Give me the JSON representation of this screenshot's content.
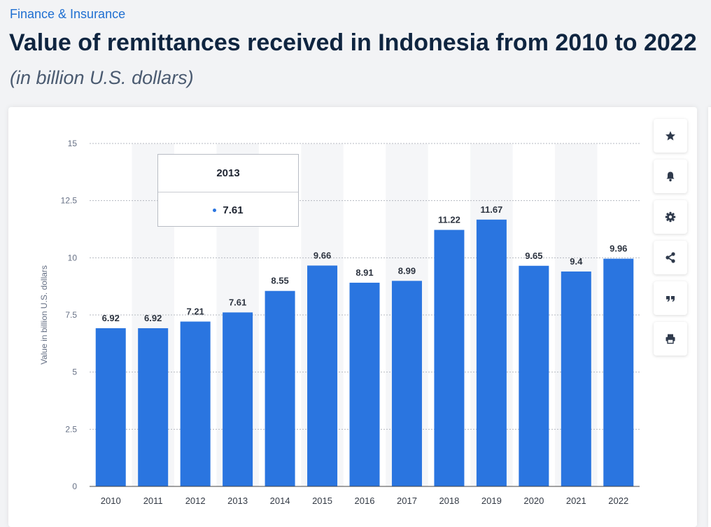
{
  "breadcrumb": "Finance & Insurance",
  "title": "Value of remittances received in Indonesia from 2010 to 2022",
  "subtitle": "(in billion U.S. dollars)",
  "colors": {
    "bar": "#2a75e0",
    "accent": "#1f6fd1",
    "title": "#0f2540",
    "stripe": "#f5f6f8"
  },
  "tooltip": {
    "category": "2013",
    "value": "7.61"
  },
  "toolbar": [
    {
      "name": "favorite-button",
      "icon": "star-icon"
    },
    {
      "name": "notification-button",
      "icon": "bell-icon"
    },
    {
      "name": "settings-button",
      "icon": "gear-icon"
    },
    {
      "name": "share-button",
      "icon": "share-icon"
    },
    {
      "name": "cite-button",
      "icon": "quote-icon"
    },
    {
      "name": "print-button",
      "icon": "printer-icon"
    }
  ],
  "chart_data": {
    "type": "bar",
    "categories": [
      "2010",
      "2011",
      "2012",
      "2013",
      "2014",
      "2015",
      "2016",
      "2017",
      "2018",
      "2019",
      "2020",
      "2021",
      "2022"
    ],
    "values": [
      6.92,
      6.92,
      7.21,
      7.61,
      8.55,
      9.66,
      8.91,
      8.99,
      11.22,
      11.67,
      9.65,
      9.4,
      9.96
    ],
    "value_labels": [
      "6.92",
      "6.92",
      "7.21",
      "7.61",
      "8.55",
      "9.66",
      "8.91",
      "8.99",
      "11.22",
      "11.67",
      "9.65",
      "9.4",
      "9.96"
    ],
    "ylabel": "Value in billion U.S. dollars",
    "ylim": [
      0,
      15
    ],
    "yticks": [
      0,
      2.5,
      5,
      7.5,
      10,
      12.5,
      15
    ],
    "ytick_labels": [
      "0",
      "2.5",
      "5",
      "7.5",
      "10",
      "12.5",
      "15"
    ],
    "grid": true
  }
}
